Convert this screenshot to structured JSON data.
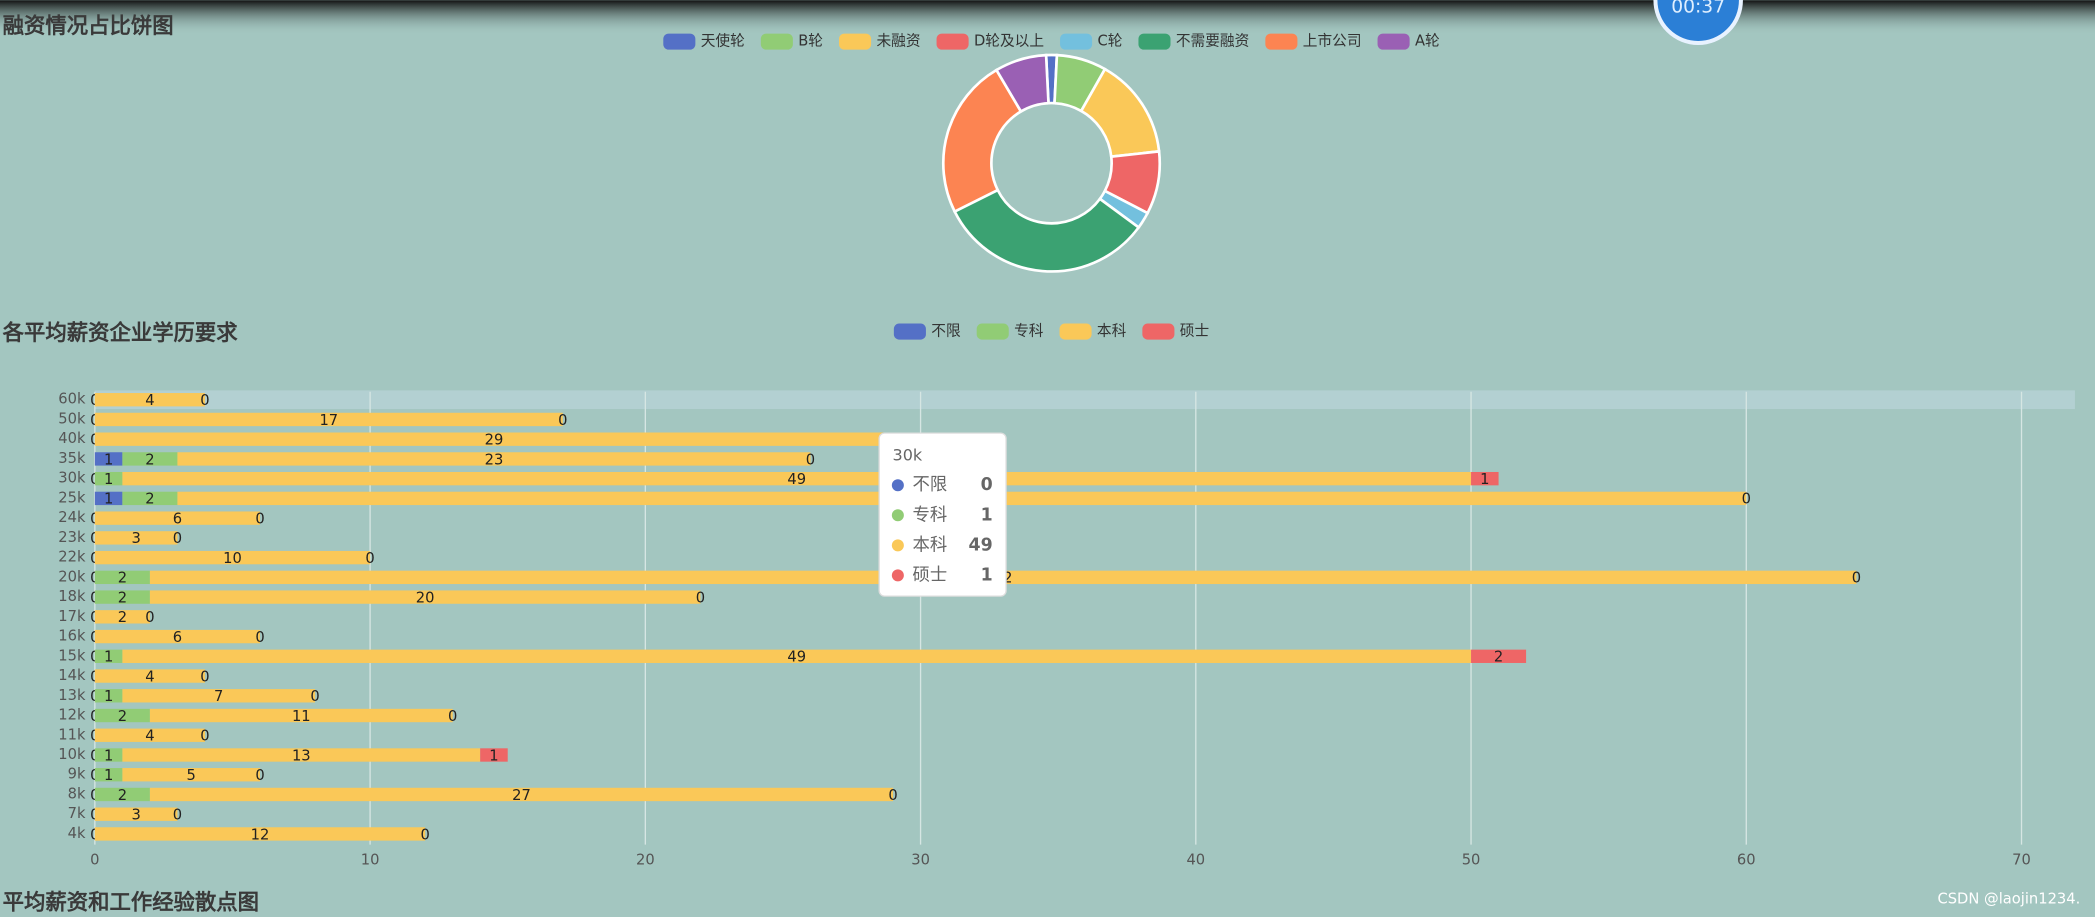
{
  "timer": "00:37",
  "watermark": "CSDN @laojin1234.",
  "chart_data": [
    {
      "type": "pie",
      "title": "融资情况占比饼图",
      "categories": [
        "天使轮",
        "B轮",
        "未融资",
        "D轮及以上",
        "C轮",
        "不需要融资",
        "上市公司",
        "A轮"
      ],
      "values": [
        18,
        84,
        170,
        106,
        28,
        368,
        270,
        87
      ],
      "colors": [
        "#5470c6",
        "#91cc75",
        "#fac858",
        "#ee6666",
        "#73c0de",
        "#3ba272",
        "#fc8452",
        "#9a60b4"
      ]
    },
    {
      "type": "bar",
      "orientation": "horizontal",
      "stacked": true,
      "title": "各平均薪资企业学历要求",
      "categories": [
        "4k",
        "7k",
        "8k",
        "9k",
        "10k",
        "11k",
        "12k",
        "13k",
        "14k",
        "15k",
        "16k",
        "17k",
        "18k",
        "20k",
        "22k",
        "23k",
        "24k",
        "25k",
        "30k",
        "35k",
        "40k",
        "50k",
        "60k"
      ],
      "series": [
        {
          "name": "不限",
          "color": "#5470c6",
          "values": [
            0,
            0,
            0,
            0,
            0,
            0,
            0,
            0,
            0,
            0,
            0,
            0,
            0,
            0,
            0,
            0,
            0,
            1,
            0,
            1,
            0,
            0,
            0
          ]
        },
        {
          "name": "专科",
          "color": "#91cc75",
          "values": [
            null,
            null,
            2,
            1,
            1,
            null,
            2,
            1,
            null,
            1,
            null,
            null,
            2,
            2,
            null,
            null,
            null,
            2,
            1,
            2,
            null,
            null,
            null
          ]
        },
        {
          "name": "本科",
          "color": "#fac858",
          "values": [
            12,
            3,
            27,
            5,
            13,
            4,
            11,
            7,
            4,
            49,
            6,
            2,
            20,
            62,
            10,
            3,
            6,
            57,
            49,
            23,
            29,
            17,
            4
          ]
        },
        {
          "name": "硕士",
          "color": "#ee6666",
          "values": [
            0,
            0,
            0,
            0,
            1,
            0,
            0,
            0,
            0,
            2,
            0,
            0,
            0,
            0,
            0,
            0,
            0,
            0,
            1,
            0,
            0,
            0,
            0
          ]
        }
      ],
      "xlim": [
        0,
        70
      ],
      "xticks": [
        0,
        10,
        20,
        30,
        40,
        50,
        60,
        70
      ],
      "grid": true
    },
    {
      "type": "scatter",
      "title": "平均薪资和工作经验散点图"
    }
  ]
}
